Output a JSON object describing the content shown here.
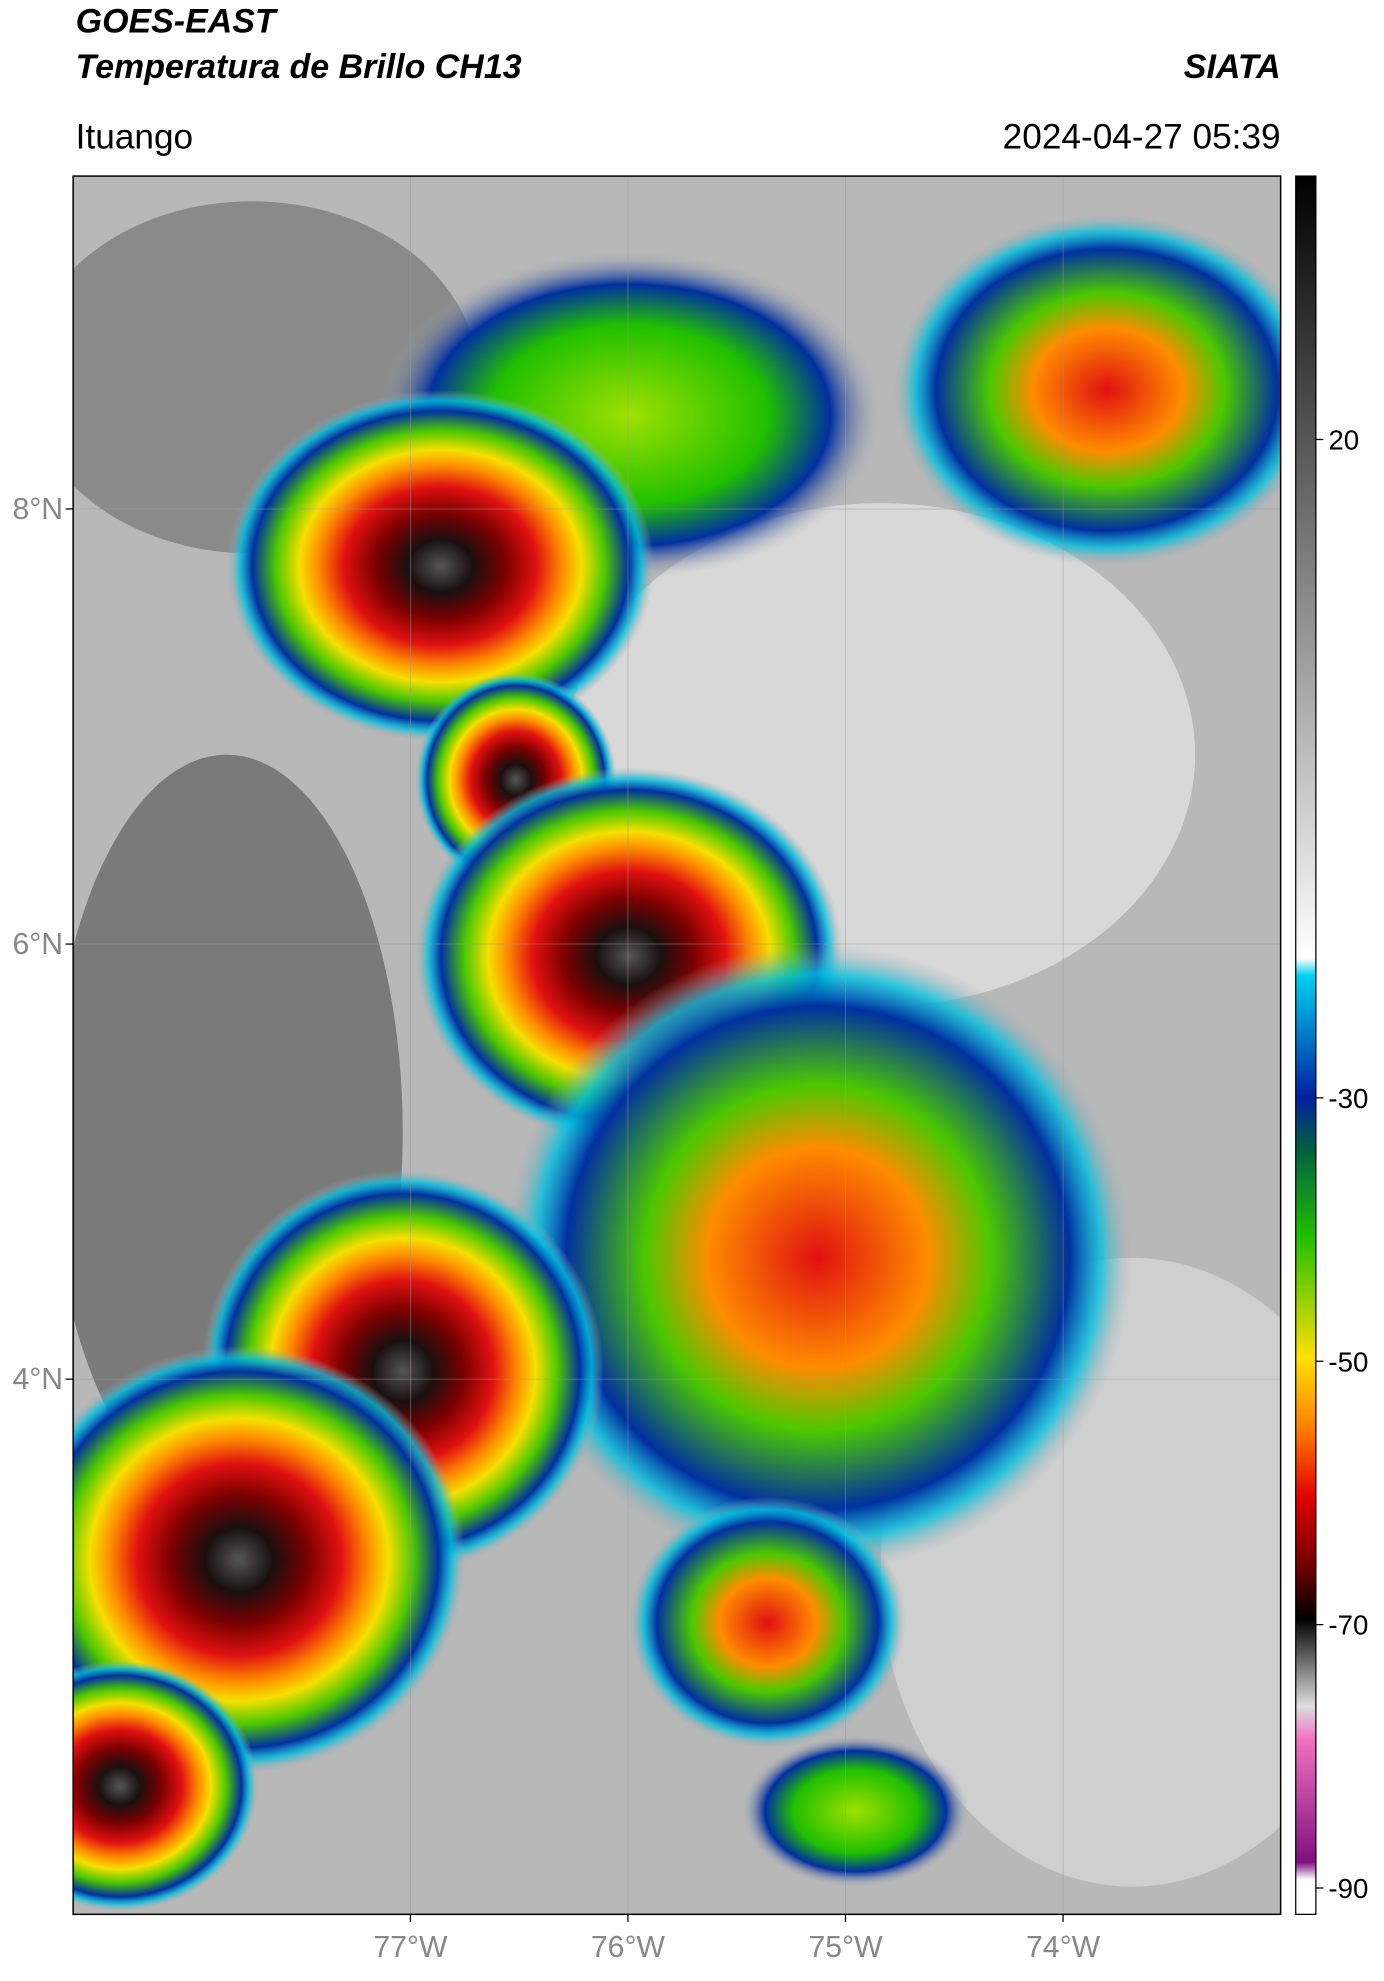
{
  "header": {
    "title": "GOES-EAST",
    "subtitle": "Temperatura de Brillo CH13",
    "source": "SIATA",
    "location": "Ituango",
    "datetime": "2024-04-27 05:39"
  },
  "map": {
    "xlim": [
      -78.55,
      -73.0
    ],
    "ylim": [
      1.54,
      9.53
    ],
    "xticks": [
      {
        "value": -77,
        "label": "77°W"
      },
      {
        "value": -76,
        "label": "76°W"
      },
      {
        "value": -75,
        "label": "75°W"
      },
      {
        "value": -74,
        "label": "74°W"
      }
    ],
    "yticks": [
      {
        "value": 8,
        "label": "8°N"
      },
      {
        "value": 6,
        "label": "6°N"
      },
      {
        "value": 4,
        "label": "4°N"
      }
    ],
    "grid": true
  },
  "colorbar": {
    "lim": [
      -92,
      40
    ],
    "ticks": [
      20,
      -30,
      -50,
      -70,
      -90
    ]
  }
}
